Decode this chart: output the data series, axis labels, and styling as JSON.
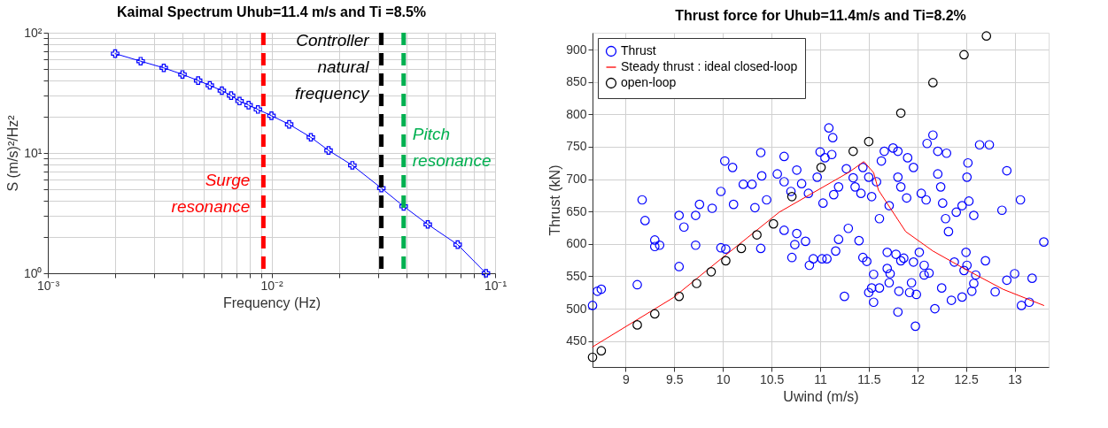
{
  "chart_data": [
    {
      "type": "line",
      "title": "Kaimal Spectrum Uhub=11.4 m/s and Ti =8.5%",
      "xlabel": "Frequency (Hz)",
      "ylabel": "S (m/s)²/Hz²",
      "log": "xy",
      "grid": true,
      "marker": "cross",
      "line_style": "solid",
      "xlim": [
        0.001,
        0.1
      ],
      "ylim": [
        1,
        100
      ],
      "xticks": [
        {
          "value": 0.001,
          "label": "10⁻³"
        },
        {
          "value": 0.002,
          "label": null
        },
        {
          "value": 0.003,
          "label": null
        },
        {
          "value": 0.004,
          "label": null
        },
        {
          "value": 0.005,
          "label": null
        },
        {
          "value": 0.006,
          "label": null
        },
        {
          "value": 0.007,
          "label": null
        },
        {
          "value": 0.008,
          "label": null
        },
        {
          "value": 0.009,
          "label": null
        },
        {
          "value": 0.01,
          "label": "10⁻²"
        },
        {
          "value": 0.02,
          "label": null
        },
        {
          "value": 0.03,
          "label": null
        },
        {
          "value": 0.04,
          "label": null
        },
        {
          "value": 0.05,
          "label": null
        },
        {
          "value": 0.06,
          "label": null
        },
        {
          "value": 0.07,
          "label": null
        },
        {
          "value": 0.08,
          "label": null
        },
        {
          "value": 0.09,
          "label": null
        },
        {
          "value": 0.1,
          "label": "10⁻¹"
        }
      ],
      "yticks": [
        {
          "value": 1,
          "label": "10⁰"
        },
        {
          "value": 2,
          "label": null
        },
        {
          "value": 3,
          "label": null
        },
        {
          "value": 4,
          "label": null
        },
        {
          "value": 5,
          "label": null
        },
        {
          "value": 6,
          "label": null
        },
        {
          "value": 7,
          "label": null
        },
        {
          "value": 8,
          "label": null
        },
        {
          "value": 9,
          "label": null
        },
        {
          "value": 10,
          "label": "10¹"
        },
        {
          "value": 20,
          "label": null
        },
        {
          "value": 30,
          "label": null
        },
        {
          "value": 40,
          "label": null
        },
        {
          "value": 50,
          "label": null
        },
        {
          "value": 60,
          "label": null
        },
        {
          "value": 70,
          "label": null
        },
        {
          "value": 80,
          "label": null
        },
        {
          "value": 90,
          "label": null
        },
        {
          "value": 100,
          "label": "10²"
        }
      ],
      "series": [
        {
          "color": "#0000ff",
          "x": [
            0.002,
            0.0026,
            0.0033,
            0.004,
            0.0047,
            0.0053,
            0.006,
            0.0066,
            0.0072,
            0.0079,
            0.0087,
            0.01,
            0.012,
            0.015,
            0.018,
            0.023,
            0.031,
            0.039,
            0.05,
            0.068,
            0.091
          ],
          "values": [
            67,
            58,
            51,
            45,
            40,
            36.5,
            33,
            30,
            27,
            25,
            23,
            20.4,
            17.3,
            13.5,
            10.5,
            7.9,
            5.1,
            3.6,
            2.55,
            1.73,
            1.0
          ]
        }
      ],
      "ref_lines": [
        {
          "axis": "x",
          "value": 0.0092,
          "label": "Surge resonance",
          "color": "#ff0000",
          "line_style": "dashed"
        },
        {
          "axis": "x",
          "value": 0.031,
          "label": "Controller natural frequency",
          "color": "#000000",
          "line_style": "dashed"
        },
        {
          "axis": "x",
          "value": 0.039,
          "label": "Pitch resonance",
          "color": "#00b050",
          "line_style": "dashed"
        }
      ]
    },
    {
      "type": "scatter",
      "title": "Thrust force for Uhub=11.4m/s and Ti=8.2%",
      "xlabel": "Uwind (m/s)",
      "ylabel": "Thrust (kN)",
      "grid": true,
      "legend": "top left",
      "marker": "circle",
      "xlim": [
        8.66,
        13.35
      ],
      "ylim": [
        410,
        926
      ],
      "xticks": [
        9,
        9.5,
        10,
        10.5,
        11,
        11.5,
        12,
        12.5,
        13
      ],
      "yticks": [
        450,
        500,
        550,
        600,
        650,
        700,
        750,
        800,
        850,
        900
      ],
      "series": [
        {
          "name": "Thrust",
          "color": "#0000ff",
          "x": [
            9.17,
            9.2,
            9.55,
            9.6,
            9.72,
            9.76,
            9.89,
            9.98,
            10.02,
            10.1,
            10.11,
            10.21,
            10.3,
            10.33,
            10.39,
            10.4,
            10.45,
            10.56,
            10.63,
            10.63,
            10.7,
            10.76,
            10.81,
            10.88,
            10.97,
            11.0,
            11.05,
            11.09,
            11.13,
            11.12,
            11.14,
            11.19,
            11.03,
            11.27,
            11.34,
            11.36,
            11.42,
            11.44,
            11.5,
            11.53,
            11.58,
            11.63,
            11.66,
            11.71,
            11.61,
            11.75,
            11.8,
            11.8,
            11.83,
            11.89,
            11.9,
            11.96,
            12.04,
            12.09,
            12.1,
            12.16,
            12.21,
            12.21,
            12.24,
            12.26,
            12.3,
            12.29,
            12.32,
            12.4,
            12.46,
            12.52,
            12.51,
            12.53,
            12.58,
            12.64,
            12.74,
            12.87,
            12.92,
            13.06,
            13.3,
            8.66,
            8.71,
            8.75,
            9.12,
            9.3,
            9.3,
            9.35,
            9.55,
            9.72,
            9.98,
            10.03,
            10.39,
            10.63,
            10.71,
            10.76,
            10.74,
            10.85,
            10.89,
            10.93,
            11.02,
            11.07,
            11.16,
            11.19,
            11.25,
            11.29,
            11.4,
            11.44,
            11.48,
            11.5,
            11.53,
            11.55,
            11.55,
            11.61,
            11.69,
            11.69,
            11.71,
            11.72,
            11.78,
            11.8,
            11.81,
            11.83,
            11.86,
            11.92,
            11.94,
            11.96,
            11.98,
            11.99,
            12.02,
            12.07,
            12.07,
            12.12,
            12.18,
            12.25,
            12.35,
            12.38,
            12.46,
            12.5,
            12.48,
            12.51,
            12.56,
            12.58,
            12.6,
            12.7,
            12.8,
            12.92,
            13.0,
            13.07,
            13.15,
            13.18
          ],
          "values": [
            668,
            636,
            644,
            626,
            644,
            661,
            655,
            681,
            728,
            718,
            661,
            692,
            692,
            656,
            741,
            705,
            668,
            708,
            696,
            735,
            681,
            714,
            693,
            678,
            703,
            742,
            733,
            779,
            764,
            738,
            676,
            688,
            663,
            716,
            702,
            688,
            678,
            718,
            703,
            673,
            696,
            728,
            743,
            659,
            639,
            748,
            743,
            703,
            688,
            671,
            733,
            718,
            678,
            668,
            755,
            768,
            743,
            708,
            688,
            663,
            740,
            639,
            619,
            649,
            659,
            725,
            703,
            666,
            644,
            753,
            753,
            652,
            713,
            668,
            603,
            505,
            527,
            530,
            537,
            606,
            596,
            598,
            565,
            598,
            594,
            592,
            593,
            621,
            579,
            616,
            599,
            604,
            567,
            577,
            577,
            577,
            589,
            607,
            519,
            624,
            605,
            579,
            573,
            525,
            532,
            510,
            553,
            532,
            587,
            562,
            540,
            554,
            584,
            495,
            527,
            574,
            578,
            525,
            540,
            572,
            473,
            522,
            587,
            567,
            552,
            555,
            500,
            532,
            513,
            572,
            518,
            587,
            559,
            567,
            527,
            539,
            552,
            574,
            526,
            544,
            554,
            505,
            510,
            547
          ]
        },
        {
          "name": "Steady thrust : ideal closed-loop",
          "type": "line",
          "marker": "none",
          "color": "#ff0000",
          "x": [
            8.66,
            9.49,
            9.99,
            10.58,
            11.3,
            11.45,
            11.55,
            11.6,
            11.88,
            12.16,
            12.48,
            12.88,
            13.3
          ],
          "values": [
            441,
            517,
            578,
            649,
            711,
            727,
            710,
            683,
            619,
            589,
            562,
            530,
            505
          ]
        },
        {
          "name": "open-loop",
          "color": "#000000",
          "x": [
            8.66,
            8.75,
            9.12,
            9.3,
            9.55,
            9.73,
            9.88,
            10.03,
            10.19,
            10.35,
            10.52,
            10.71,
            11.01,
            11.34,
            11.5,
            11.83,
            12.16,
            12.48,
            12.71
          ],
          "values": [
            425,
            435,
            475,
            492,
            519,
            539,
            557,
            574,
            593,
            614,
            631,
            673,
            718,
            743,
            758,
            802,
            849,
            892,
            921
          ]
        }
      ]
    }
  ]
}
